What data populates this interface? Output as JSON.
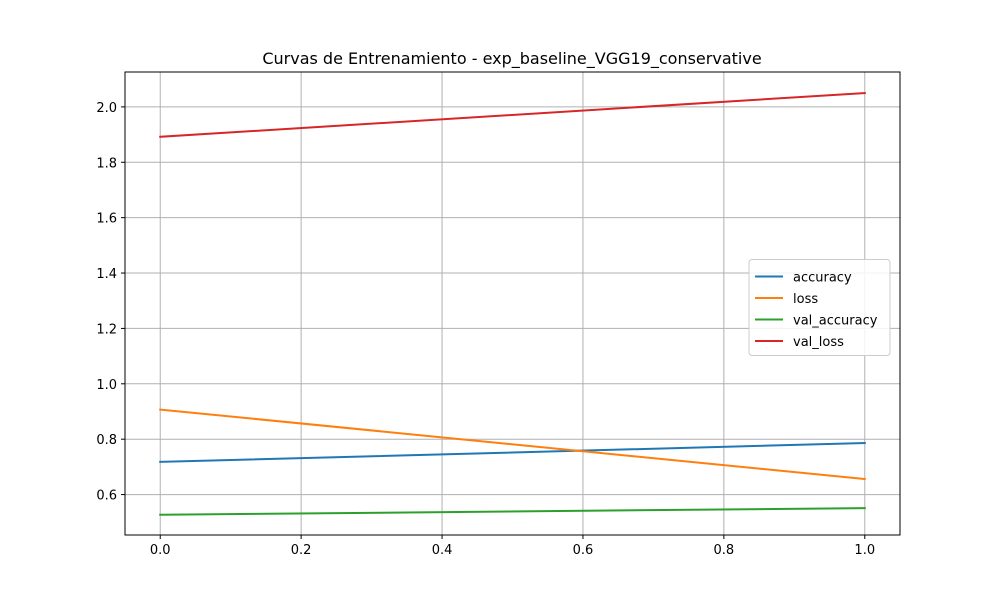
{
  "chart_data": {
    "type": "line",
    "title": "Curvas de Entrenamiento - exp_baseline_VGG19_conservative",
    "xlabel": "",
    "ylabel": "",
    "x": [
      0,
      1
    ],
    "xlim": [
      -0.05,
      1.05
    ],
    "ylim": [
      0.454,
      2.126
    ],
    "x_ticks": [
      0.0,
      0.2,
      0.4,
      0.6,
      0.8,
      1.0
    ],
    "x_tick_labels": [
      "0.0",
      "0.2",
      "0.4",
      "0.6",
      "0.8",
      "1.0"
    ],
    "y_ticks": [
      0.6,
      0.8,
      1.0,
      1.2,
      1.4,
      1.6,
      1.8,
      2.0
    ],
    "y_tick_labels": [
      "0.6",
      "0.8",
      "1.0",
      "1.2",
      "1.4",
      "1.6",
      "1.8",
      "2.0"
    ],
    "grid": true,
    "legend_position": "center-right",
    "series": [
      {
        "name": "accuracy",
        "color": "#1f77b4",
        "values": [
          0.718,
          0.786
        ]
      },
      {
        "name": "loss",
        "color": "#ff7f0e",
        "values": [
          0.907,
          0.656
        ]
      },
      {
        "name": "val_accuracy",
        "color": "#2ca02c",
        "values": [
          0.527,
          0.551
        ]
      },
      {
        "name": "val_loss",
        "color": "#d62728",
        "values": [
          1.892,
          2.05
        ]
      }
    ]
  }
}
